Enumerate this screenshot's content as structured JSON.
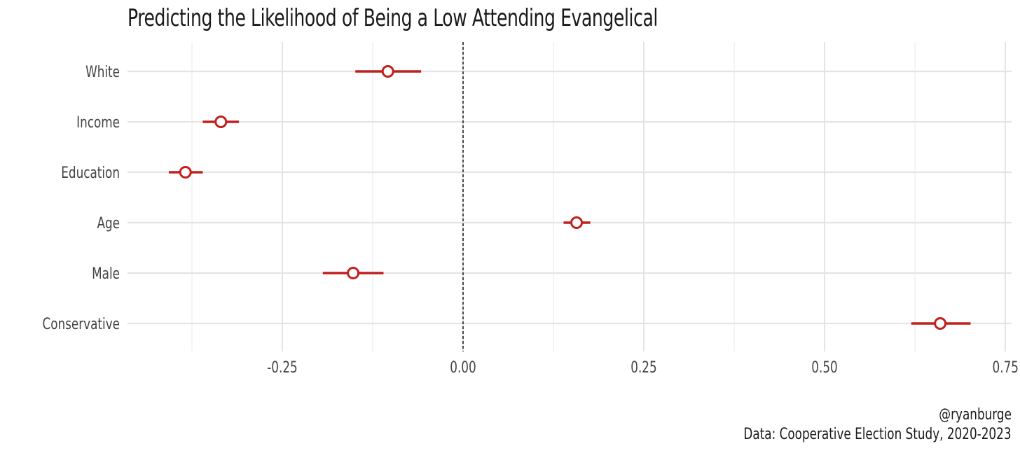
{
  "chart_data": {
    "type": "scatter",
    "subtype": "coefficient-plot",
    "title": "Predicting the Likelihood of Being a Low Attending Evangelical",
    "xlabel": "",
    "ylabel": "",
    "xlim": [
      -0.47,
      0.75
    ],
    "x_ticks": [
      -0.25,
      0.0,
      0.25,
      0.5,
      0.75
    ],
    "x_tick_labels": [
      "-0.25",
      "0.00",
      "0.25",
      "0.50",
      "0.75"
    ],
    "reference_line": 0,
    "grid": true,
    "legend": "none",
    "point_color": "#c0201e",
    "categories": [
      "White",
      "Income",
      "Education",
      "Age",
      "Male",
      "Conservative"
    ],
    "estimates": [
      -0.104,
      -0.335,
      -0.384,
      0.157,
      -0.152,
      0.66
    ],
    "ci_low": [
      -0.149,
      -0.36,
      -0.407,
      0.139,
      -0.194,
      0.62
    ],
    "ci_high": [
      -0.058,
      -0.31,
      -0.36,
      0.176,
      -0.11,
      0.702
    ]
  },
  "caption": {
    "handle": "@ryanburge",
    "source": "Data: Cooperative Election Study, 2020-2023"
  }
}
